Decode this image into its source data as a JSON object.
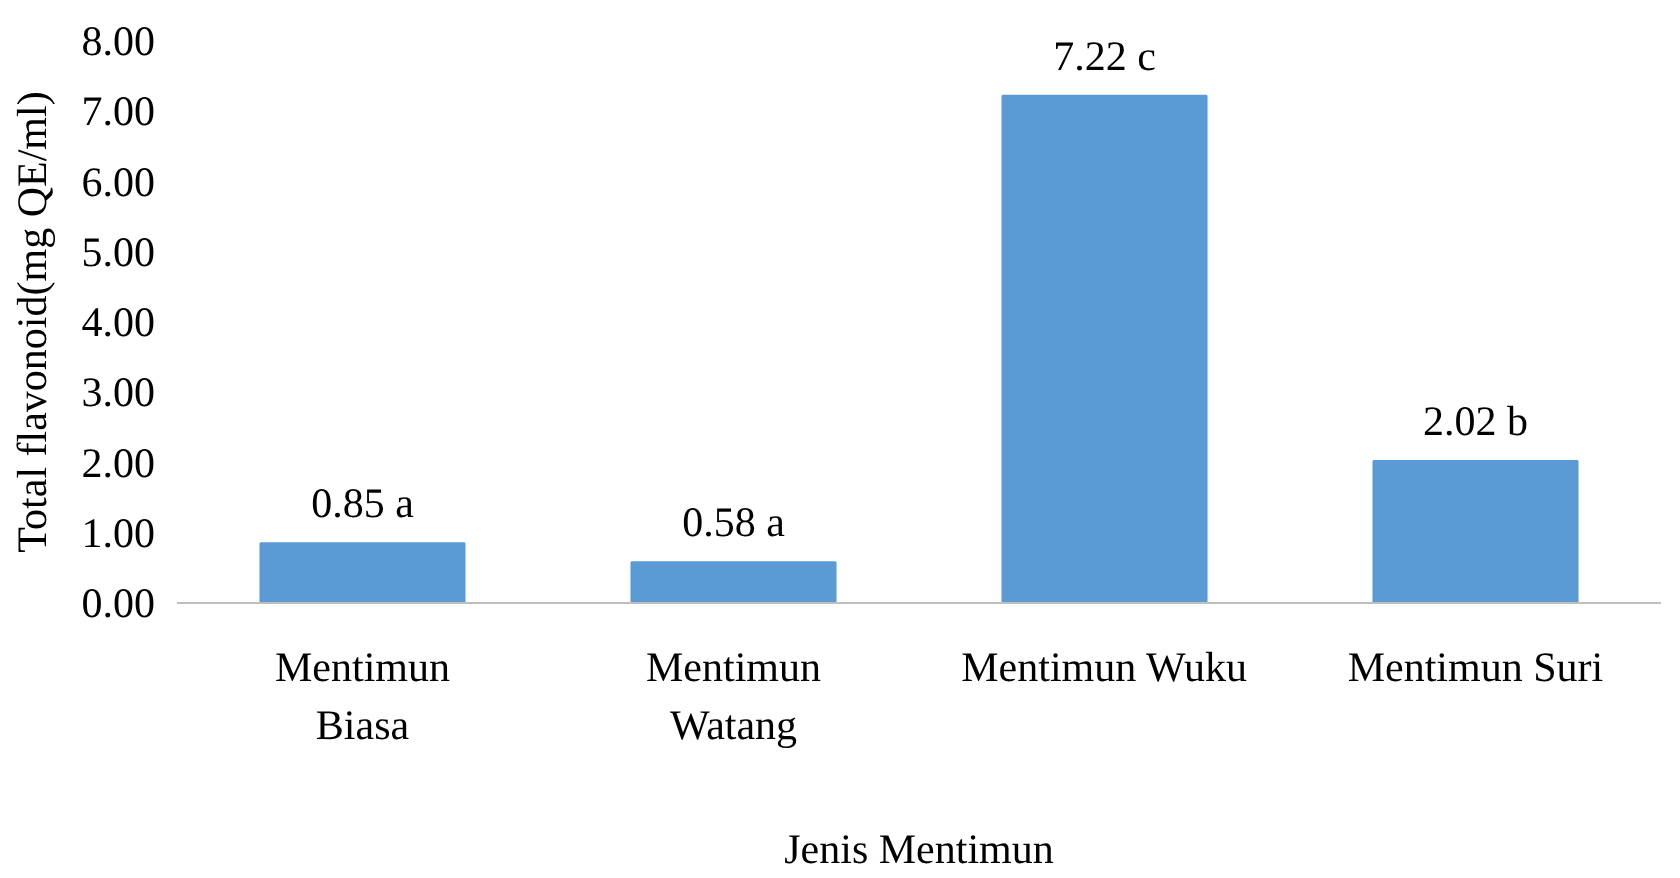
{
  "chart_data": {
    "type": "bar",
    "xlabel": "Jenis Mentimun",
    "ylabel": "Total flavonoid(mg QE/ml)",
    "categories": [
      "Mentimun Biasa",
      "Mentimun Watang",
      "Mentimun Wuku",
      "Mentimun Suri"
    ],
    "values": [
      0.85,
      0.58,
      7.22,
      2.02
    ],
    "value_labels": [
      "0.85 a",
      "0.58 a",
      "7.22 c",
      "2.02 b"
    ],
    "color": "#5b9bd5",
    "ylim": [
      0,
      8
    ],
    "yticks": [
      {
        "value": 0,
        "label": "0.00"
      },
      {
        "value": 1,
        "label": "1.00"
      },
      {
        "value": 2,
        "label": "2.00"
      },
      {
        "value": 3,
        "label": "3.00"
      },
      {
        "value": 4,
        "label": "4.00"
      },
      {
        "value": 5,
        "label": "5.00"
      },
      {
        "value": 6,
        "label": "6.00"
      },
      {
        "value": 7,
        "label": "7.00"
      },
      {
        "value": 8,
        "label": "8.00"
      }
    ],
    "grid": false
  }
}
